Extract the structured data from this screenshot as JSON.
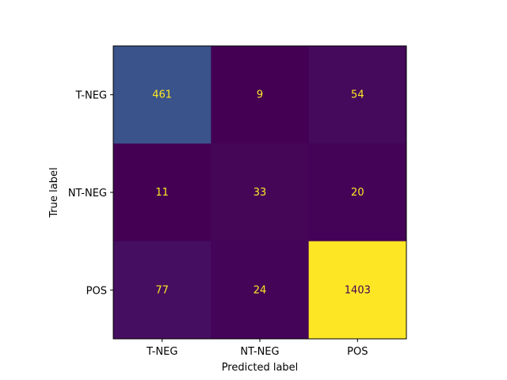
{
  "chart_data": {
    "type": "heatmap",
    "title": "",
    "xlabel": "Predicted label",
    "ylabel": "True label",
    "x_categories": [
      "T-NEG",
      "NT-NEG",
      "POS"
    ],
    "y_categories": [
      "T-NEG",
      "NT-NEG",
      "POS"
    ],
    "values": [
      [
        461,
        9,
        54
      ],
      [
        11,
        33,
        20
      ],
      [
        77,
        24,
        1403
      ]
    ],
    "colormap": "viridis",
    "color_range": [
      9,
      1403
    ],
    "grid": false,
    "legend": "none"
  }
}
